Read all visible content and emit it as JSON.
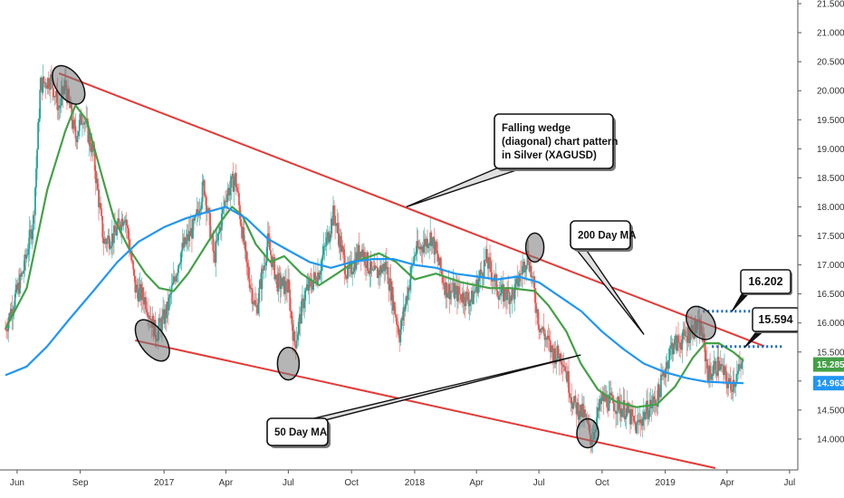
{
  "chart_data": {
    "type": "candlestick",
    "instrument": "Silver (XAGUSD)",
    "y_axis": {
      "ticks": [
        "14.000",
        "14.500",
        "15.000",
        "15.500",
        "16.000",
        "16.500",
        "17.000",
        "17.500",
        "18.000",
        "18.500",
        "19.000",
        "19.500",
        "20.000",
        "20.500",
        "21.000",
        "21.500"
      ],
      "range": [
        13.5,
        21.5
      ]
    },
    "x_axis": {
      "ticks": [
        "Jun",
        "Sep",
        "2017",
        "Apr",
        "Jul",
        "Oct",
        "2018",
        "Apr",
        "Jul",
        "Oct",
        "2019",
        "Apr",
        "Jul"
      ],
      "tick_dates": [
        "2016-06-01",
        "2016-09-01",
        "2017-01-01",
        "2017-04-01",
        "2017-07-01",
        "2017-10-01",
        "2018-01-01",
        "2018-04-01",
        "2018-07-01",
        "2018-10-01",
        "2019-01-01",
        "2019-04-01",
        "2019-07-01"
      ],
      "range": [
        "2016-05-15",
        "2019-08-15"
      ]
    },
    "series": [
      {
        "name": "50 Day MA",
        "color": "#43a047",
        "points": [
          [
            "2016-05-15",
            15.9
          ],
          [
            "2016-06-15",
            16.6
          ],
          [
            "2016-07-15",
            18.3
          ],
          [
            "2016-08-10",
            19.3
          ],
          [
            "2016-08-25",
            19.75
          ],
          [
            "2016-09-10",
            19.5
          ],
          [
            "2016-10-01",
            18.6
          ],
          [
            "2016-10-20",
            17.8
          ],
          [
            "2016-11-10",
            17.3
          ],
          [
            "2016-12-05",
            16.85
          ],
          [
            "2016-12-25",
            16.6
          ],
          [
            "2017-01-15",
            16.55
          ],
          [
            "2017-02-05",
            16.85
          ],
          [
            "2017-03-01",
            17.3
          ],
          [
            "2017-03-25",
            17.75
          ],
          [
            "2017-04-10",
            18.0
          ],
          [
            "2017-04-25",
            17.85
          ],
          [
            "2017-05-15",
            17.35
          ],
          [
            "2017-06-05",
            17.05
          ],
          [
            "2017-06-25",
            17.15
          ],
          [
            "2017-07-20",
            16.85
          ],
          [
            "2017-08-15",
            16.65
          ],
          [
            "2017-09-10",
            16.85
          ],
          [
            "2017-10-05",
            17.05
          ],
          [
            "2017-11-10",
            17.2
          ],
          [
            "2017-12-05",
            17.05
          ],
          [
            "2018-01-01",
            16.75
          ],
          [
            "2018-02-01",
            16.85
          ],
          [
            "2018-03-10",
            16.7
          ],
          [
            "2018-04-20",
            16.6
          ],
          [
            "2018-05-20",
            16.6
          ],
          [
            "2018-06-25",
            16.55
          ],
          [
            "2018-07-15",
            16.3
          ],
          [
            "2018-08-10",
            15.85
          ],
          [
            "2018-08-31",
            15.3
          ],
          [
            "2018-09-25",
            14.85
          ],
          [
            "2018-10-20",
            14.65
          ],
          [
            "2018-11-20",
            14.55
          ],
          [
            "2018-12-20",
            14.6
          ],
          [
            "2019-01-15",
            14.9
          ],
          [
            "2019-02-10",
            15.4
          ],
          [
            "2019-02-28",
            15.65
          ],
          [
            "2019-03-20",
            15.65
          ],
          [
            "2019-04-10",
            15.5
          ],
          [
            "2019-04-25",
            15.35
          ]
        ]
      },
      {
        "name": "200 Day MA",
        "color": "#2196f3",
        "points": [
          [
            "2016-05-15",
            15.1
          ],
          [
            "2016-06-15",
            15.25
          ],
          [
            "2016-07-15",
            15.6
          ],
          [
            "2016-08-15",
            16.05
          ],
          [
            "2016-09-20",
            16.55
          ],
          [
            "2016-10-25",
            17.05
          ],
          [
            "2016-11-25",
            17.4
          ],
          [
            "2017-01-01",
            17.65
          ],
          [
            "2017-02-01",
            17.8
          ],
          [
            "2017-03-01",
            17.9
          ],
          [
            "2017-04-01",
            18.0
          ],
          [
            "2017-05-01",
            17.8
          ],
          [
            "2017-06-01",
            17.45
          ],
          [
            "2017-07-01",
            17.25
          ],
          [
            "2017-08-01",
            17.05
          ],
          [
            "2017-09-01",
            16.95
          ],
          [
            "2017-10-01",
            17.05
          ],
          [
            "2017-11-01",
            17.1
          ],
          [
            "2017-12-01",
            17.1
          ],
          [
            "2018-01-01",
            17.0
          ],
          [
            "2018-02-01",
            16.95
          ],
          [
            "2018-03-01",
            16.85
          ],
          [
            "2018-04-01",
            16.8
          ],
          [
            "2018-05-01",
            16.75
          ],
          [
            "2018-06-01",
            16.8
          ],
          [
            "2018-07-01",
            16.7
          ],
          [
            "2018-08-01",
            16.45
          ],
          [
            "2018-09-01",
            16.2
          ],
          [
            "2018-10-01",
            15.85
          ],
          [
            "2018-11-01",
            15.55
          ],
          [
            "2018-12-01",
            15.3
          ],
          [
            "2019-01-01",
            15.15
          ],
          [
            "2019-02-01",
            15.05
          ],
          [
            "2019-03-01",
            14.99
          ],
          [
            "2019-04-01",
            14.97
          ],
          [
            "2019-04-25",
            14.963
          ]
        ]
      },
      {
        "name": "Price",
        "color": "#ef5350",
        "points": [
          [
            "2016-05-15",
            15.9
          ],
          [
            "2016-06-10",
            16.9
          ],
          [
            "2016-06-25",
            17.8
          ],
          [
            "2016-07-05",
            20.1
          ],
          [
            "2016-07-20",
            20.2
          ],
          [
            "2016-08-01",
            19.7
          ],
          [
            "2016-08-10",
            20.1
          ],
          [
            "2016-08-25",
            19.2
          ],
          [
            "2016-09-05",
            19.6
          ],
          [
            "2016-09-20",
            18.9
          ],
          [
            "2016-10-05",
            17.4
          ],
          [
            "2016-10-20",
            17.5
          ],
          [
            "2016-11-05",
            17.9
          ],
          [
            "2016-11-20",
            16.6
          ],
          [
            "2016-12-05",
            16.4
          ],
          [
            "2016-12-20",
            15.8
          ],
          [
            "2017-01-05",
            16.2
          ],
          [
            "2017-01-25",
            17.2
          ],
          [
            "2017-02-15",
            17.7
          ],
          [
            "2017-02-28",
            18.4
          ],
          [
            "2017-03-15",
            17.1
          ],
          [
            "2017-04-01",
            18.2
          ],
          [
            "2017-04-15",
            18.5
          ],
          [
            "2017-05-01",
            17.0
          ],
          [
            "2017-05-15",
            16.2
          ],
          [
            "2017-06-01",
            17.4
          ],
          [
            "2017-06-15",
            16.7
          ],
          [
            "2017-07-01",
            16.6
          ],
          [
            "2017-07-10",
            15.6
          ],
          [
            "2017-07-25",
            16.5
          ],
          [
            "2017-08-15",
            16.9
          ],
          [
            "2017-09-05",
            17.9
          ],
          [
            "2017-09-25",
            16.8
          ],
          [
            "2017-10-15",
            17.3
          ],
          [
            "2017-11-01",
            16.8
          ],
          [
            "2017-11-20",
            17.0
          ],
          [
            "2017-12-10",
            15.8
          ],
          [
            "2018-01-01",
            17.2
          ],
          [
            "2018-01-25",
            17.5
          ],
          [
            "2018-02-15",
            16.6
          ],
          [
            "2018-03-05",
            16.5
          ],
          [
            "2018-03-25",
            16.4
          ],
          [
            "2018-04-15",
            17.1
          ],
          [
            "2018-05-05",
            16.5
          ],
          [
            "2018-05-25",
            16.5
          ],
          [
            "2018-06-15",
            17.2
          ],
          [
            "2018-07-01",
            16.0
          ],
          [
            "2018-07-20",
            15.5
          ],
          [
            "2018-08-05",
            15.4
          ],
          [
            "2018-08-20",
            14.6
          ],
          [
            "2018-09-05",
            14.4
          ],
          [
            "2018-09-15",
            14.0
          ],
          [
            "2018-10-01",
            14.7
          ],
          [
            "2018-10-20",
            14.6
          ],
          [
            "2018-11-05",
            14.5
          ],
          [
            "2018-11-20",
            14.2
          ],
          [
            "2018-12-05",
            14.5
          ],
          [
            "2018-12-20",
            14.7
          ],
          [
            "2019-01-10",
            15.6
          ],
          [
            "2019-01-25",
            15.7
          ],
          [
            "2019-02-10",
            15.9
          ],
          [
            "2019-02-22",
            15.9
          ],
          [
            "2019-03-05",
            15.1
          ],
          [
            "2019-03-20",
            15.3
          ],
          [
            "2019-04-05",
            14.9
          ],
          [
            "2019-04-15",
            15.1
          ],
          [
            "2019-04-25",
            15.285
          ]
        ]
      }
    ],
    "trendlines": [
      {
        "name": "upper wedge line",
        "color": "#e53935",
        "from": [
          "2016-08-01",
          20.3
        ],
        "to": [
          "2019-05-25",
          15.6
        ]
      },
      {
        "name": "lower wedge line",
        "color": "#e53935",
        "from": [
          "2016-11-20",
          15.7
        ],
        "to": [
          "2019-03-15",
          13.5
        ]
      }
    ],
    "levels": [
      {
        "label": "16.202",
        "value": 16.202,
        "from": "2019-02-25",
        "to": "2019-05-20",
        "color": "#1565c0"
      },
      {
        "label": "15.594",
        "value": 15.594,
        "from": "2019-03-10",
        "to": "2019-06-20",
        "color": "#1565c0"
      }
    ],
    "highlights": [
      {
        "date": "2016-08-15",
        "value": 20.1
      },
      {
        "date": "2016-12-15",
        "value": 15.7
      },
      {
        "date": "2017-07-01",
        "value": 15.3
      },
      {
        "date": "2018-06-25",
        "value": 17.3
      },
      {
        "date": "2018-09-10",
        "value": 14.1
      },
      {
        "date": "2019-02-22",
        "value": 16.0
      }
    ],
    "annotations": [
      {
        "lines": [
          "Falling wedge",
          "(diagonal) chart pattern",
          "in Silver (XAGUSD)"
        ],
        "points_to": [
          "2017-12-20",
          18.0
        ]
      },
      {
        "lines": [
          "200 Day MA"
        ],
        "points_to": [
          "2018-12-01",
          15.8
        ]
      },
      {
        "lines": [
          "50 Day MA"
        ],
        "points_to": [
          "2018-08-31",
          15.45
        ]
      }
    ],
    "price_labels": [
      {
        "label": "15.285",
        "value": 15.285,
        "color": "#43a047"
      },
      {
        "label": "14.963",
        "value": 14.963,
        "color": "#2196f3"
      }
    ],
    "grid": false
  }
}
